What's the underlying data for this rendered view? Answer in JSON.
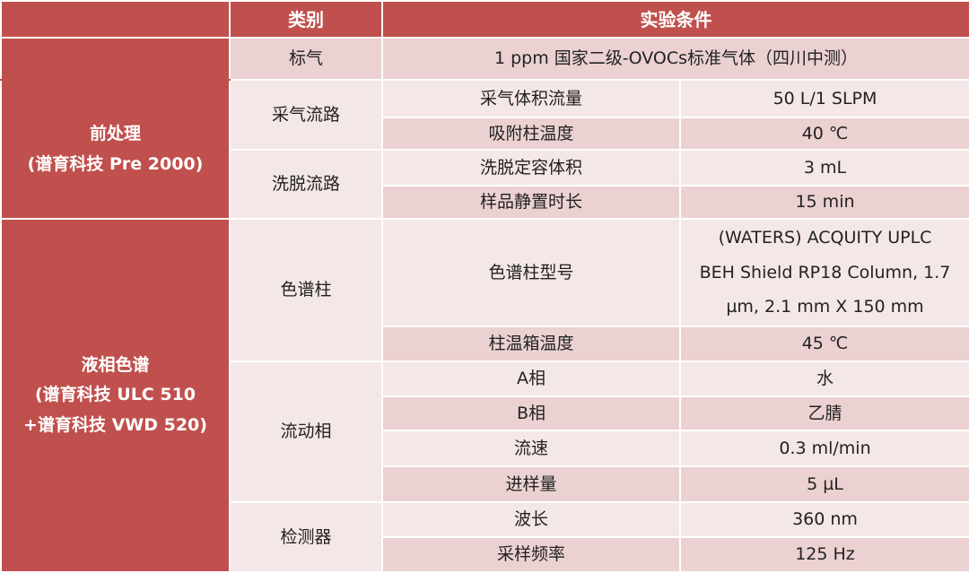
{
  "header": {
    "category": "类别",
    "conditions": "实验条件"
  },
  "standard_gas": {
    "label": "标气",
    "value": "1 ppm 国家二级-OVOCs标准气体（四川中测）"
  },
  "groups": [
    {
      "title_lines": [
        "前处理",
        "(谱育科技 Pre 2000)"
      ],
      "subgroups": [
        {
          "label": "采气流路",
          "rows": [
            {
              "param": "采气体积流量",
              "value": "50 L/1 SLPM"
            },
            {
              "param": "吸附柱温度",
              "value": "40 ℃"
            }
          ]
        },
        {
          "label": "洗脱流路",
          "rows": [
            {
              "param": "洗脱定容体积",
              "value": "3 mL"
            },
            {
              "param": "样品静置时长",
              "value": "15 min"
            }
          ]
        }
      ]
    },
    {
      "title_lines": [
        "液相色谱",
        "(谱育科技 ULC 510",
        "+谱育科技 VWD 520)"
      ],
      "subgroups": [
        {
          "label": "色谱柱",
          "rows": [
            {
              "param": "色谱柱型号",
              "value_lines": [
                "(WATERS) ACQUITY UPLC",
                "BEH Shield RP18 Column, 1.7",
                "µm, 2.1 mm X 150 mm"
              ]
            },
            {
              "param": "柱温箱温度",
              "value": "45 ℃"
            }
          ]
        },
        {
          "label": "流动相",
          "rows": [
            {
              "param": "A相",
              "value": "水"
            },
            {
              "param": "B相",
              "value": "乙腈"
            },
            {
              "param": "流速",
              "value": "0.3 ml/min"
            },
            {
              "param": "进样量",
              "value": "5 µL"
            }
          ]
        },
        {
          "label": "检测器",
          "rows": [
            {
              "param": "波长",
              "value": "360 nm"
            },
            {
              "param": "采样频率",
              "value": "125 Hz"
            }
          ]
        }
      ]
    }
  ],
  "colors": {
    "header_red": "#c0504d",
    "row_light": "#f4e7e7",
    "row_dark": "#ebd1d1"
  }
}
